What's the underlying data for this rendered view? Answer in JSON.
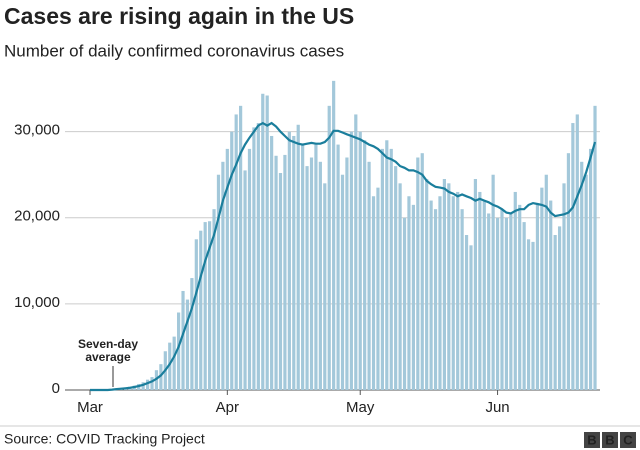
{
  "chart_data": {
    "type": "bar",
    "title": "Cases are rising again in the US",
    "subtitle": "Number of daily confirmed coronavirus cases",
    "source": "Source: COVID Tracking Project",
    "logo": [
      "B",
      "B",
      "C"
    ],
    "categories": [
      "Mar",
      null,
      null,
      null,
      null,
      null,
      null,
      null,
      null,
      null,
      null,
      null,
      null,
      null,
      null,
      null,
      null,
      null,
      null,
      null,
      null,
      null,
      null,
      null,
      null,
      null,
      null,
      null,
      null,
      null,
      null,
      "Apr",
      null,
      null,
      null,
      null,
      null,
      null,
      null,
      null,
      null,
      null,
      null,
      null,
      null,
      null,
      null,
      null,
      null,
      null,
      null,
      null,
      null,
      null,
      null,
      null,
      null,
      null,
      null,
      null,
      null,
      "May",
      null,
      null,
      null,
      null,
      null,
      null,
      null,
      null,
      null,
      null,
      null,
      null,
      null,
      null,
      null,
      null,
      null,
      null,
      null,
      null,
      null,
      null,
      null,
      null,
      null,
      null,
      null,
      null,
      null,
      null,
      "Jun",
      null,
      null,
      null,
      null,
      null,
      null,
      null,
      null,
      null,
      null,
      null,
      null,
      null,
      null,
      null,
      null,
      null,
      null,
      null,
      null,
      null,
      null
    ],
    "values": [
      0,
      0,
      0,
      0,
      100,
      100,
      200,
      200,
      300,
      400,
      500,
      700,
      900,
      1200,
      1500,
      2300,
      3000,
      4500,
      5500,
      6200,
      9000,
      11500,
      10500,
      13000,
      17500,
      18500,
      19500,
      19600,
      21000,
      25000,
      26500,
      28000,
      30000,
      32000,
      33000,
      25500,
      28000,
      30500,
      31000,
      34400,
      34200,
      29500,
      27200,
      25200,
      27300,
      30000,
      29500,
      30800,
      28500,
      26000,
      27000,
      28500,
      26500,
      24000,
      33000,
      35900,
      28500,
      25000,
      27000,
      30000,
      32000,
      30000,
      29000,
      26500,
      22500,
      23500,
      28000,
      29000,
      28000,
      26000,
      24000,
      20000,
      22500,
      21500,
      27000,
      27500,
      24500,
      22000,
      21000,
      22500,
      24500,
      24000,
      22500,
      23000,
      21000,
      18000,
      16800,
      24500,
      23000,
      22000,
      20500,
      25000,
      20000,
      21000,
      20000,
      20500,
      23000,
      21500,
      19500,
      17500,
      17200,
      21500,
      23500,
      25000,
      22000,
      18000,
      19000,
      24000,
      27500,
      31000,
      32000,
      26500,
      25000,
      28000,
      33000
    ],
    "color": "#a3c8da",
    "average": {
      "label": [
        "Seven-day",
        "average"
      ],
      "color": "#1a7e9c",
      "values": [
        0,
        0,
        0,
        0,
        0,
        50,
        100,
        150,
        200,
        250,
        350,
        450,
        600,
        800,
        1000,
        1300,
        1700,
        2300,
        3000,
        3900,
        5000,
        6500,
        8000,
        9500,
        11300,
        13200,
        15000,
        16500,
        18000,
        20000,
        22000,
        23500,
        25000,
        26200,
        27500,
        28500,
        29300,
        30000,
        30700,
        31000,
        30700,
        31000,
        30600,
        30000,
        29500,
        29000,
        28800,
        28600,
        28500,
        28600,
        28700,
        28600,
        28600,
        28800,
        29300,
        30100,
        30100,
        29900,
        29700,
        29500,
        29300,
        29100,
        28800,
        28500,
        28300,
        28000,
        27500,
        27000,
        26800,
        26500,
        26000,
        25800,
        25500,
        25500,
        25300,
        25000,
        24300,
        23900,
        23600,
        23500,
        23400,
        23000,
        22800,
        22500,
        22700,
        22500,
        22300,
        22000,
        22200,
        22000,
        21800,
        21500,
        21300,
        21000,
        20600,
        20500,
        20800,
        21000,
        21000,
        21500,
        21700,
        21600,
        21500,
        21300,
        20600,
        20200,
        20300,
        20400,
        20600,
        21200,
        22500,
        23800,
        25300,
        27000,
        28800
      ]
    },
    "ylim": [
      0,
      36000
    ],
    "yticks": [
      0,
      {
        "value": 10000,
        "label": "10,000"
      },
      {
        "value": 20000,
        "label": "20,000"
      },
      {
        "value": 30000,
        "label": "30,000"
      }
    ],
    "grid": true
  }
}
